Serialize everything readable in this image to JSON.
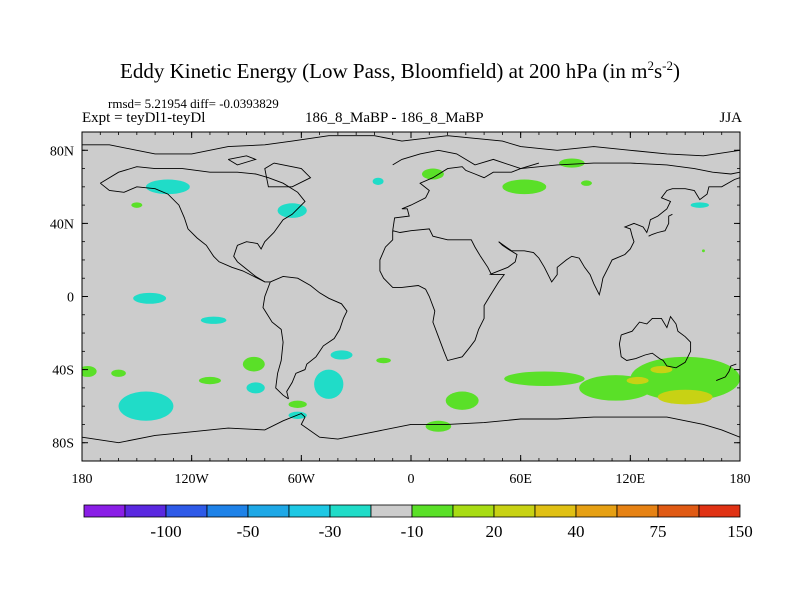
{
  "chart_data": {
    "type": "contour_map",
    "title": "Eddy Kinetic Energy (Low Pass, Bloomfield) at 200 hPa (in m",
    "title_units": {
      "sup1": "2",
      "mid": "s",
      "sup2": "-2",
      "close": ")"
    },
    "stats": "rmsd= 5.21954 diff= -0.0393829",
    "left_label": "Expt = teyDl1-teyDl",
    "center_label": "186_8_MaBP - 186_8_MaBP",
    "right_label": "JJA",
    "xlim": [
      -180,
      180
    ],
    "ylim": [
      -90,
      90
    ],
    "x_ticks": [
      {
        "value": -180,
        "label": "180"
      },
      {
        "value": -120,
        "label": "120W"
      },
      {
        "value": -60,
        "label": "60W"
      },
      {
        "value": 0,
        "label": "0"
      },
      {
        "value": 60,
        "label": "60E"
      },
      {
        "value": 120,
        "label": "120E"
      },
      {
        "value": 180,
        "label": "180"
      }
    ],
    "y_ticks": [
      {
        "value": 80,
        "label": "80N"
      },
      {
        "value": 40,
        "label": "40N"
      },
      {
        "value": 0,
        "label": "0"
      },
      {
        "value": -40,
        "label": "40S"
      },
      {
        "value": -80,
        "label": "80S"
      }
    ],
    "colorbar": {
      "colors": [
        "#8a1ee6",
        "#5a28e0",
        "#2e5ae8",
        "#1e82e8",
        "#1ea8e6",
        "#1ec8e4",
        "#20dcc8",
        "#cccccc",
        "#5ae028",
        "#a8dc14",
        "#c8d214",
        "#e0c014",
        "#e6a014",
        "#e68214",
        "#e05a14",
        "#e03214"
      ],
      "labels": [
        "-100",
        "-50",
        "-30",
        "-10",
        "20",
        "40",
        "75",
        "150"
      ]
    },
    "anomalies": [
      {
        "lon": -133,
        "lat": 60,
        "rx": 12,
        "ry": 4,
        "value": -15
      },
      {
        "lon": -150,
        "lat": 50,
        "rx": 3,
        "ry": 1.5,
        "value": 15
      },
      {
        "lon": -65,
        "lat": 47,
        "rx": 8,
        "ry": 4,
        "value": -15
      },
      {
        "lon": -18,
        "lat": 63,
        "rx": 3,
        "ry": 2,
        "value": -15
      },
      {
        "lon": 12,
        "lat": 67,
        "rx": 6,
        "ry": 3,
        "value": 15
      },
      {
        "lon": 62,
        "lat": 60,
        "rx": 12,
        "ry": 4,
        "value": 15
      },
      {
        "lon": 88,
        "lat": 73,
        "rx": 7,
        "ry": 2.5,
        "value": 15
      },
      {
        "lon": 96,
        "lat": 62,
        "rx": 3,
        "ry": 1.5,
        "value": 15
      },
      {
        "lon": 158,
        "lat": 50,
        "rx": 5,
        "ry": 1.5,
        "value": -15
      },
      {
        "lon": 160,
        "lat": 25,
        "rx": 0.8,
        "ry": 0.8,
        "value": 15
      },
      {
        "lon": -143,
        "lat": -1,
        "rx": 9,
        "ry": 3,
        "value": -15
      },
      {
        "lon": -108,
        "lat": -13,
        "rx": 7,
        "ry": 2,
        "value": -15
      },
      {
        "lon": -38,
        "lat": -32,
        "rx": 6,
        "ry": 2.5,
        "value": -15
      },
      {
        "lon": -15,
        "lat": -35,
        "rx": 4,
        "ry": 1.5,
        "value": 15
      },
      {
        "lon": -145,
        "lat": -60,
        "rx": 15,
        "ry": 8,
        "value": -15
      },
      {
        "lon": -177,
        "lat": -41,
        "rx": 5,
        "ry": 3,
        "value": 15
      },
      {
        "lon": -160,
        "lat": -42,
        "rx": 4,
        "ry": 2,
        "value": 15
      },
      {
        "lon": -110,
        "lat": -46,
        "rx": 6,
        "ry": 2,
        "value": 15
      },
      {
        "lon": -86,
        "lat": -37,
        "rx": 6,
        "ry": 4,
        "value": 15
      },
      {
        "lon": -85,
        "lat": -50,
        "rx": 5,
        "ry": 3,
        "value": -15
      },
      {
        "lon": -45,
        "lat": -48,
        "rx": 8,
        "ry": 8,
        "value": -15
      },
      {
        "lon": -62,
        "lat": -65,
        "rx": 5,
        "ry": 2,
        "value": -15
      },
      {
        "lon": -62,
        "lat": -59,
        "rx": 5,
        "ry": 2,
        "value": 15
      },
      {
        "lon": 15,
        "lat": -71,
        "rx": 7,
        "ry": 3,
        "value": 15
      },
      {
        "lon": 28,
        "lat": -57,
        "rx": 9,
        "ry": 5,
        "value": 15
      },
      {
        "lon": 73,
        "lat": -45,
        "rx": 22,
        "ry": 4,
        "value": 15
      },
      {
        "lon": 112,
        "lat": -50,
        "rx": 20,
        "ry": 7,
        "value": 15
      },
      {
        "lon": 150,
        "lat": -45,
        "rx": 30,
        "ry": 12,
        "value": 15
      },
      {
        "lon": 150,
        "lat": -55,
        "rx": 15,
        "ry": 4,
        "value": 40
      },
      {
        "lon": 124,
        "lat": -46,
        "rx": 6,
        "ry": 2,
        "value": 40
      },
      {
        "lon": 137,
        "lat": -40,
        "rx": 6,
        "ry": 2,
        "value": 40
      }
    ],
    "coastlines": [
      [
        [
          -180,
          83
        ],
        [
          -165,
          83
        ],
        [
          -150,
          80
        ],
        [
          -140,
          78
        ],
        [
          -120,
          78
        ],
        [
          -100,
          82
        ],
        [
          -80,
          83
        ],
        [
          -65,
          85
        ],
        [
          -45,
          88
        ],
        [
          -20,
          88
        ],
        [
          -5,
          85
        ],
        [
          20,
          88
        ],
        [
          50,
          85
        ],
        [
          60,
          82
        ],
        [
          80,
          80
        ],
        [
          100,
          82
        ],
        [
          120,
          80
        ],
        [
          140,
          78
        ],
        [
          160,
          77
        ],
        [
          180,
          80
        ]
      ],
      [
        [
          -10,
          72
        ],
        [
          -5,
          75
        ],
        [
          5,
          78
        ],
        [
          15,
          80
        ],
        [
          25,
          78
        ],
        [
          30,
          75
        ],
        [
          35,
          72
        ],
        [
          45,
          75
        ],
        [
          60,
          70
        ],
        [
          80,
          72
        ],
        [
          100,
          73
        ],
        [
          120,
          73
        ],
        [
          140,
          72
        ],
        [
          155,
          70
        ],
        [
          165,
          68
        ],
        [
          175,
          67
        ],
        [
          180,
          68
        ]
      ],
      [
        [
          -100,
          75
        ],
        [
          -90,
          77
        ],
        [
          -85,
          75
        ],
        [
          -95,
          72
        ],
        [
          -100,
          75
        ]
      ],
      [
        [
          -75,
          73
        ],
        [
          -60,
          70
        ],
        [
          -55,
          65
        ],
        [
          -65,
          60
        ],
        [
          -78,
          60
        ],
        [
          -80,
          70
        ],
        [
          -75,
          73
        ]
      ],
      [
        [
          -170,
          62
        ],
        [
          -160,
          68
        ],
        [
          -150,
          71
        ],
        [
          -140,
          70
        ],
        [
          -125,
          70
        ],
        [
          -110,
          68
        ],
        [
          -95,
          68
        ],
        [
          -85,
          67
        ],
        [
          -78,
          65
        ],
        [
          -70,
          62
        ],
        [
          -62,
          57
        ],
        [
          -58,
          52
        ],
        [
          -65,
          45
        ],
        [
          -70,
          42
        ],
        [
          -75,
          35
        ],
        [
          -80,
          30
        ],
        [
          -82,
          26
        ],
        [
          -84,
          29
        ],
        [
          -90,
          30
        ],
        [
          -95,
          28
        ],
        [
          -97,
          22
        ],
        [
          -95,
          19
        ],
        [
          -90,
          15
        ],
        [
          -85,
          11
        ],
        [
          -80,
          8
        ],
        [
          -77,
          8
        ]
      ],
      [
        [
          -170,
          62
        ],
        [
          -165,
          58
        ],
        [
          -157,
          57
        ],
        [
          -150,
          60
        ],
        [
          -140,
          59
        ],
        [
          -133,
          56
        ],
        [
          -127,
          50
        ],
        [
          -124,
          43
        ],
        [
          -122,
          37
        ],
        [
          -117,
          32
        ],
        [
          -112,
          28
        ],
        [
          -108,
          22
        ],
        [
          -105,
          19
        ],
        [
          -98,
          16
        ],
        [
          -92,
          14
        ],
        [
          -86,
          11
        ],
        [
          -80,
          8
        ]
      ],
      [
        [
          -77,
          8
        ],
        [
          -80,
          0
        ],
        [
          -81,
          -6
        ],
        [
          -76,
          -14
        ],
        [
          -71,
          -18
        ],
        [
          -70,
          -25
        ],
        [
          -71,
          -35
        ],
        [
          -73,
          -42
        ],
        [
          -74,
          -50
        ],
        [
          -70,
          -54
        ],
        [
          -67,
          -56
        ]
      ],
      [
        [
          -77,
          8
        ],
        [
          -70,
          11
        ],
        [
          -62,
          10
        ],
        [
          -55,
          6
        ],
        [
          -50,
          2
        ],
        [
          -45,
          -1
        ],
        [
          -38,
          -4
        ],
        [
          -35,
          -8
        ],
        [
          -37,
          -12
        ],
        [
          -39,
          -18
        ],
        [
          -42,
          -23
        ],
        [
          -48,
          -27
        ],
        [
          -52,
          -33
        ],
        [
          -57,
          -37
        ],
        [
          -58,
          -40
        ],
        [
          -63,
          -42
        ],
        [
          -65,
          -47
        ],
        [
          -68,
          -52
        ],
        [
          -67,
          -56
        ]
      ],
      [
        [
          -10,
          36
        ],
        [
          -9,
          43
        ],
        [
          -1,
          44
        ],
        [
          -2,
          48
        ],
        [
          -5,
          48
        ],
        [
          0,
          50
        ],
        [
          8,
          54
        ],
        [
          10,
          58
        ],
        [
          5,
          62
        ],
        [
          12,
          65
        ],
        [
          20,
          70
        ],
        [
          28,
          71
        ],
        [
          30,
          69
        ],
        [
          35,
          67
        ],
        [
          40,
          65
        ],
        [
          45,
          68
        ],
        [
          55,
          68
        ],
        [
          60,
          70
        ],
        [
          70,
          73
        ]
      ],
      [
        [
          -10,
          36
        ],
        [
          -6,
          35
        ],
        [
          0,
          36
        ],
        [
          10,
          37
        ],
        [
          12,
          33
        ],
        [
          20,
          31
        ],
        [
          30,
          31
        ],
        [
          33,
          31
        ],
        [
          35,
          27
        ],
        [
          38,
          22
        ],
        [
          42,
          16
        ],
        [
          44,
          12
        ],
        [
          51,
          12
        ],
        [
          48,
          8
        ],
        [
          43,
          0
        ],
        [
          40,
          -5
        ],
        [
          40,
          -12
        ],
        [
          37,
          -18
        ],
        [
          35,
          -24
        ],
        [
          32,
          -28
        ],
        [
          28,
          -33
        ],
        [
          20,
          -35
        ],
        [
          18,
          -30
        ],
        [
          15,
          -22
        ],
        [
          12,
          -14
        ],
        [
          13,
          -8
        ],
        [
          10,
          0
        ],
        [
          8,
          4
        ],
        [
          4,
          6
        ],
        [
          -5,
          5
        ],
        [
          -10,
          5
        ],
        [
          -15,
          10
        ],
        [
          -17,
          14
        ],
        [
          -17,
          20
        ],
        [
          -14,
          27
        ],
        [
          -10,
          31
        ],
        [
          -10,
          36
        ]
      ],
      [
        [
          43,
          12
        ],
        [
          48,
          14
        ],
        [
          53,
          16
        ],
        [
          57,
          19
        ],
        [
          58,
          23
        ],
        [
          53,
          26
        ],
        [
          50,
          28
        ],
        [
          48,
          30
        ]
      ],
      [
        [
          48,
          30
        ],
        [
          55,
          25
        ],
        [
          62,
          25
        ],
        [
          67,
          24
        ],
        [
          70,
          21
        ],
        [
          73,
          16
        ],
        [
          77,
          8
        ],
        [
          80,
          12
        ],
        [
          80,
          16
        ],
        [
          85,
          20
        ],
        [
          88,
          22
        ],
        [
          92,
          21
        ],
        [
          95,
          16
        ],
        [
          98,
          12
        ],
        [
          100,
          7
        ],
        [
          103,
          1
        ],
        [
          104,
          5
        ],
        [
          105,
          10
        ],
        [
          108,
          16
        ],
        [
          110,
          20
        ],
        [
          117,
          23
        ],
        [
          120,
          26
        ],
        [
          122,
          30
        ],
        [
          121,
          33
        ],
        [
          120,
          37
        ],
        [
          117,
          38
        ],
        [
          122,
          40
        ],
        [
          127,
          38
        ],
        [
          129,
          35
        ],
        [
          130,
          38
        ],
        [
          131,
          42
        ],
        [
          135,
          44
        ],
        [
          140,
          48
        ],
        [
          142,
          52
        ],
        [
          137,
          54
        ],
        [
          140,
          58
        ],
        [
          143,
          59
        ],
        [
          150,
          59
        ],
        [
          155,
          58
        ],
        [
          158,
          53
        ],
        [
          162,
          56
        ],
        [
          163,
          60
        ],
        [
          170,
          60
        ],
        [
          177,
          64
        ],
        [
          180,
          65
        ]
      ],
      [
        [
          130,
          33
        ],
        [
          132,
          34
        ],
        [
          135,
          35
        ],
        [
          139,
          36
        ],
        [
          141,
          40
        ],
        [
          141,
          44
        ],
        [
          143,
          45
        ]
      ],
      [
        [
          115,
          -21
        ],
        [
          114,
          -26
        ],
        [
          115,
          -33
        ],
        [
          118,
          -35
        ],
        [
          123,
          -34
        ],
        [
          128,
          -32
        ],
        [
          132,
          -31
        ],
        [
          136,
          -34
        ],
        [
          138,
          -35
        ],
        [
          140,
          -38
        ],
        [
          145,
          -39
        ],
        [
          150,
          -36
        ],
        [
          153,
          -30
        ],
        [
          153,
          -25
        ],
        [
          150,
          -22
        ],
        [
          146,
          -19
        ],
        [
          145,
          -15
        ],
        [
          142,
          -11
        ],
        [
          140,
          -17
        ],
        [
          137,
          -12
        ],
        [
          132,
          -12
        ],
        [
          129,
          -15
        ],
        [
          125,
          -14
        ],
        [
          121,
          -19
        ],
        [
          115,
          -21
        ]
      ],
      [
        [
          167,
          -46
        ],
        [
          172,
          -44
        ],
        [
          174,
          -41
        ],
        [
          175,
          -38
        ],
        [
          178,
          -37
        ]
      ],
      [
        [
          -180,
          -77
        ],
        [
          -160,
          -80
        ],
        [
          -140,
          -76
        ],
        [
          -120,
          -74
        ],
        [
          -100,
          -72
        ],
        [
          -80,
          -73
        ],
        [
          -70,
          -68
        ],
        [
          -60,
          -64
        ],
        [
          -58,
          -66
        ],
        [
          -60,
          -70
        ],
        [
          -50,
          -77
        ],
        [
          -40,
          -78
        ],
        [
          -20,
          -74
        ],
        [
          0,
          -70
        ],
        [
          20,
          -70
        ],
        [
          40,
          -69
        ],
        [
          60,
          -67
        ],
        [
          80,
          -67
        ],
        [
          100,
          -66
        ],
        [
          120,
          -66
        ],
        [
          140,
          -66
        ],
        [
          160,
          -70
        ],
        [
          170,
          -73
        ],
        [
          180,
          -77
        ]
      ]
    ]
  }
}
